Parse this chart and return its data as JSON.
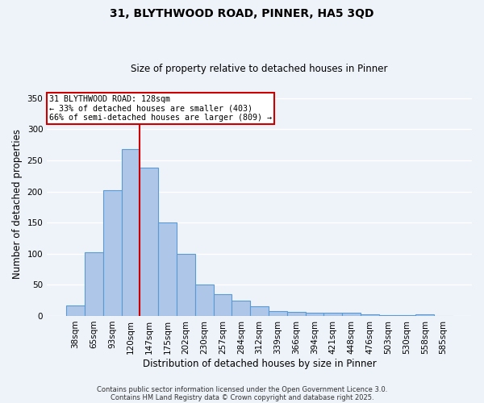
{
  "title_line1": "31, BLYTHWOOD ROAD, PINNER, HA5 3QD",
  "title_line2": "Size of property relative to detached houses in Pinner",
  "xlabel": "Distribution of detached houses by size in Pinner",
  "ylabel": "Number of detached properties",
  "categories": [
    "38sqm",
    "65sqm",
    "93sqm",
    "120sqm",
    "147sqm",
    "175sqm",
    "202sqm",
    "230sqm",
    "257sqm",
    "284sqm",
    "312sqm",
    "339sqm",
    "366sqm",
    "394sqm",
    "421sqm",
    "448sqm",
    "476sqm",
    "503sqm",
    "530sqm",
    "558sqm",
    "585sqm"
  ],
  "values": [
    17,
    102,
    202,
    268,
    238,
    150,
    100,
    51,
    35,
    25,
    15,
    8,
    7,
    5,
    5,
    5,
    2,
    1,
    1,
    3,
    0
  ],
  "bar_color": "#aec6e8",
  "bar_edge_color": "#5b9bd5",
  "vline_x": 3.5,
  "vline_color": "#cc0000",
  "annotation_text": "31 BLYTHWOOD ROAD: 128sqm\n← 33% of detached houses are smaller (403)\n66% of semi-detached houses are larger (809) →",
  "annotation_box_color": "#ffffff",
  "annotation_box_edge": "#cc0000",
  "ylim": [
    0,
    360
  ],
  "yticks": [
    0,
    50,
    100,
    150,
    200,
    250,
    300,
    350
  ],
  "background_color": "#eef2f9",
  "grid_color": "#ffffff",
  "footer_line1": "Contains HM Land Registry data © Crown copyright and database right 2025.",
  "footer_line2": "Contains public sector information licensed under the Open Government Licence 3.0."
}
